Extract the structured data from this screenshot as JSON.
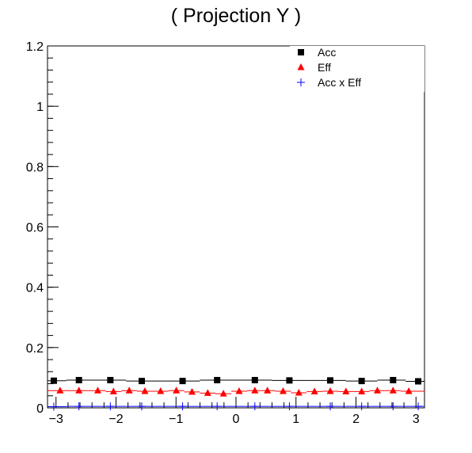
{
  "chart_data": {
    "type": "scatter",
    "title": "( Projection Y )",
    "xlabel": "",
    "ylabel": "",
    "xlim": [
      -3.14159,
      3.14159
    ],
    "ylim": [
      0,
      1.2
    ],
    "x_ticks": [
      -3,
      -2,
      -1,
      0,
      1,
      2,
      3
    ],
    "y_ticks": [
      0,
      0.2,
      0.4,
      0.6,
      0.8,
      1,
      1.2
    ],
    "x_tick_labels": [
      "−3",
      "−2",
      "−1",
      "0",
      "1",
      "2",
      "3"
    ],
    "y_tick_labels": [
      "0",
      "0.2",
      "0.4",
      "0.6",
      "0.8",
      "1",
      "1.2"
    ],
    "legend_position": "top-right",
    "series": [
      {
        "name": "Acc",
        "marker": "square",
        "color": "#000000",
        "x": [
          -3.0369,
          -2.618,
          -2.0944,
          -1.5708,
          -0.8901,
          -0.3142,
          0.3142,
          0.8901,
          1.5708,
          2.0944,
          2.618,
          3.0369
        ],
        "y": [
          0.09,
          0.092,
          0.092,
          0.089,
          0.089,
          0.092,
          0.092,
          0.091,
          0.091,
          0.089,
          0.092,
          0.088
        ]
      },
      {
        "name": "Eff",
        "marker": "triangle",
        "color": "#ff0000",
        "x": [
          -2.9322,
          -2.618,
          -2.3038,
          -2.042,
          -1.7802,
          -1.5184,
          -1.2566,
          -0.9948,
          -0.733,
          -0.4712,
          -0.2094,
          0.0524,
          0.3142,
          0.5236,
          0.7854,
          1.0472,
          1.309,
          1.5708,
          1.8326,
          2.0944,
          2.3562,
          2.618,
          2.8798
        ],
        "y": [
          0.057,
          0.057,
          0.057,
          0.054,
          0.057,
          0.055,
          0.055,
          0.057,
          0.053,
          0.049,
          0.047,
          0.055,
          0.057,
          0.057,
          0.055,
          0.05,
          0.054,
          0.055,
          0.054,
          0.054,
          0.057,
          0.057,
          0.055
        ]
      },
      {
        "name": "Acc x Eff",
        "marker": "cross",
        "color": "#0000ff",
        "x": [
          -3.0369,
          -2.618,
          -2.0944,
          -1.5708,
          -0.8901,
          -0.3142,
          0.3142,
          0.8901,
          1.5708,
          2.0944,
          2.618,
          3.0369
        ],
        "y": [
          0.004,
          0.005,
          0.005,
          0.005,
          0.005,
          0.005,
          0.005,
          0.005,
          0.005,
          0.005,
          0.005,
          0.005
        ]
      }
    ]
  }
}
